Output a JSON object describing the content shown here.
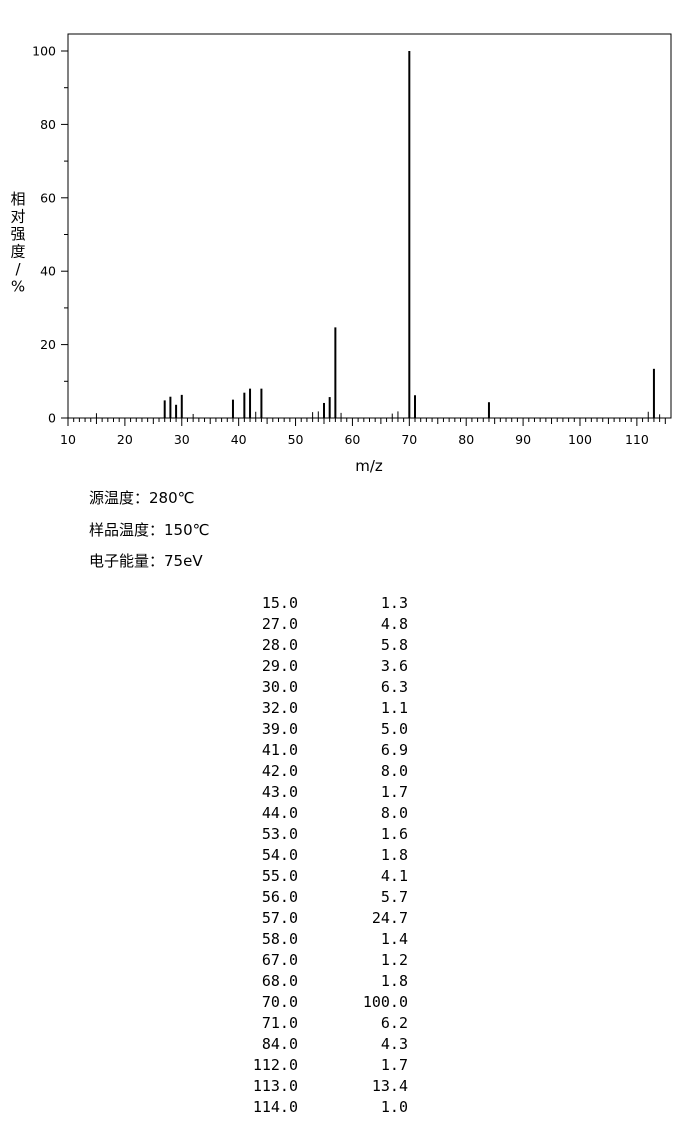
{
  "chart_data": {
    "type": "bar",
    "xlabel": "m/z",
    "ylabel": "相对强度/%",
    "xlim": [
      10,
      116
    ],
    "ylim": [
      0,
      105
    ],
    "x_ticks": [
      10,
      20,
      30,
      40,
      50,
      60,
      70,
      80,
      90,
      100,
      110
    ],
    "y_ticks": [
      0,
      20,
      40,
      60,
      80,
      100
    ],
    "grid": false,
    "peaks": [
      {
        "mz": 15.0,
        "intensity": 1.3
      },
      {
        "mz": 27.0,
        "intensity": 4.8
      },
      {
        "mz": 28.0,
        "intensity": 5.8
      },
      {
        "mz": 29.0,
        "intensity": 3.6
      },
      {
        "mz": 30.0,
        "intensity": 6.3
      },
      {
        "mz": 32.0,
        "intensity": 1.1
      },
      {
        "mz": 39.0,
        "intensity": 5.0
      },
      {
        "mz": 41.0,
        "intensity": 6.9
      },
      {
        "mz": 42.0,
        "intensity": 8.0
      },
      {
        "mz": 43.0,
        "intensity": 1.7
      },
      {
        "mz": 44.0,
        "intensity": 8.0
      },
      {
        "mz": 53.0,
        "intensity": 1.6
      },
      {
        "mz": 54.0,
        "intensity": 1.8
      },
      {
        "mz": 55.0,
        "intensity": 4.1
      },
      {
        "mz": 56.0,
        "intensity": 5.7
      },
      {
        "mz": 57.0,
        "intensity": 24.7
      },
      {
        "mz": 58.0,
        "intensity": 1.4
      },
      {
        "mz": 67.0,
        "intensity": 1.2
      },
      {
        "mz": 68.0,
        "intensity": 1.8
      },
      {
        "mz": 70.0,
        "intensity": 100.0
      },
      {
        "mz": 71.0,
        "intensity": 6.2
      },
      {
        "mz": 84.0,
        "intensity": 4.3
      },
      {
        "mz": 112.0,
        "intensity": 1.7
      },
      {
        "mz": 113.0,
        "intensity": 13.4
      },
      {
        "mz": 114.0,
        "intensity": 1.0
      }
    ]
  },
  "conditions": {
    "source_temp": "源温度：280℃",
    "sample_temp": "样品温度：150℃",
    "electron_energy": "电子能量：75eV"
  },
  "table": [
    {
      "mz": "15.0",
      "intensity": "1.3"
    },
    {
      "mz": "27.0",
      "intensity": "4.8"
    },
    {
      "mz": "28.0",
      "intensity": "5.8"
    },
    {
      "mz": "29.0",
      "intensity": "3.6"
    },
    {
      "mz": "30.0",
      "intensity": "6.3"
    },
    {
      "mz": "32.0",
      "intensity": "1.1"
    },
    {
      "mz": "39.0",
      "intensity": "5.0"
    },
    {
      "mz": "41.0",
      "intensity": "6.9"
    },
    {
      "mz": "42.0",
      "intensity": "8.0"
    },
    {
      "mz": "43.0",
      "intensity": "1.7"
    },
    {
      "mz": "44.0",
      "intensity": "8.0"
    },
    {
      "mz": "53.0",
      "intensity": "1.6"
    },
    {
      "mz": "54.0",
      "intensity": "1.8"
    },
    {
      "mz": "55.0",
      "intensity": "4.1"
    },
    {
      "mz": "56.0",
      "intensity": "5.7"
    },
    {
      "mz": "57.0",
      "intensity": "24.7"
    },
    {
      "mz": "58.0",
      "intensity": "1.4"
    },
    {
      "mz": "67.0",
      "intensity": "1.2"
    },
    {
      "mz": "68.0",
      "intensity": "1.8"
    },
    {
      "mz": "70.0",
      "intensity": "100.0"
    },
    {
      "mz": "71.0",
      "intensity": "6.2"
    },
    {
      "mz": "84.0",
      "intensity": "4.3"
    },
    {
      "mz": "112.0",
      "intensity": "1.7"
    },
    {
      "mz": "113.0",
      "intensity": "13.4"
    },
    {
      "mz": "114.0",
      "intensity": "1.0"
    }
  ]
}
